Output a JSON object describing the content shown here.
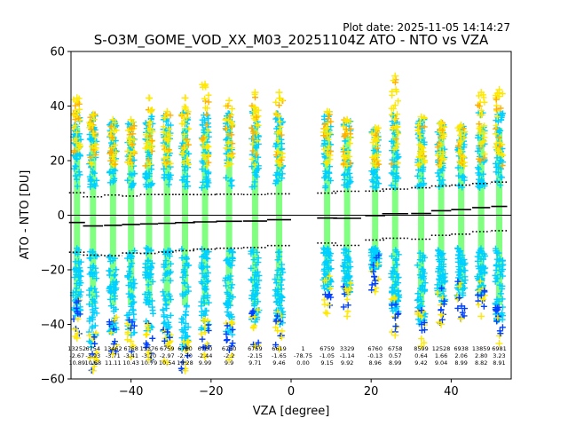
{
  "header": {
    "plot_date": "Plot date: 2025-11-05 14:14:27",
    "title": "S-O3M_GOME_VOD_XX_M03_20251104Z ATO - NTO vs VZA"
  },
  "chart_data": {
    "type": "scatter",
    "xlabel": "VZA [degree]",
    "ylabel": "ATO - NTO [DU]",
    "xlim": [
      -55,
      55
    ],
    "ylim": [
      -60,
      60
    ],
    "xticks": [
      -40,
      -20,
      0,
      20,
      40
    ],
    "yticks": [
      -60,
      -40,
      -20,
      0,
      20,
      40,
      60
    ],
    "colors": {
      "green": "#80ff80",
      "cyan": "#00d0ff",
      "blue": "#0040ff",
      "yellow": "#ffe800",
      "orange": "#ffb000",
      "line": "#000000"
    },
    "bins": [
      {
        "vza": -53.5,
        "count": "13252",
        "mean": "-2.67",
        "std": "10.89",
        "mean_v": -2.67,
        "std_v": 10.89,
        "top": 43,
        "bottom": -45
      },
      {
        "vza": -49.5,
        "count": "6754",
        "mean": "-3.93",
        "std": "10.68",
        "mean_v": -3.93,
        "std_v": 10.68,
        "top": 37,
        "bottom": -57
      },
      {
        "vza": -44.5,
        "count": "13462",
        "mean": "-3.71",
        "std": "11.11",
        "mean_v": -3.71,
        "std_v": 11.11,
        "top": 35,
        "bottom": -51
      },
      {
        "vza": -40.0,
        "count": "6758",
        "mean": "-3.41",
        "std": "10.43",
        "mean_v": -3.41,
        "std_v": 10.43,
        "top": 35,
        "bottom": -52
      },
      {
        "vza": -35.5,
        "count": "13376",
        "mean": "-3.20",
        "std": "10.79",
        "mean_v": -3.2,
        "std_v": 10.79,
        "top": 43,
        "bottom": -53
      },
      {
        "vza": -31.0,
        "count": "6759",
        "mean": "-2.97",
        "std": "10.54",
        "mean_v": -2.97,
        "std_v": 10.54,
        "top": 38,
        "bottom": -54
      },
      {
        "vza": -26.5,
        "count": "6760",
        "mean": "-2.70",
        "std": "10.28",
        "mean_v": -2.7,
        "std_v": 10.28,
        "top": 43,
        "bottom": -57
      },
      {
        "vza": -21.5,
        "count": "6760",
        "mean": "-2.44",
        "std": "9.99",
        "mean_v": -2.44,
        "std_v": 9.99,
        "top": 48,
        "bottom": -52
      },
      {
        "vza": -15.5,
        "count": "6760",
        "mean": "-2.2",
        "std": "9.9",
        "mean_v": -2.2,
        "std_v": 9.9,
        "top": 42,
        "bottom": -53
      },
      {
        "vza": -9.0,
        "count": "6759",
        "mean": "-2.15",
        "std": "9.71",
        "mean_v": -2.15,
        "std_v": 9.71,
        "top": 45,
        "bottom": -48
      },
      {
        "vza": -3.0,
        "count": "6619",
        "mean": "-1.65",
        "std": "9.46",
        "mean_v": -1.65,
        "std_v": 9.46,
        "top": 45,
        "bottom": -49
      },
      {
        "vza": 3.0,
        "count": "1",
        "mean": "-78.75",
        "std": "0.00",
        "mean_v": -78.75,
        "std_v": 0.0,
        "top": null,
        "bottom": null
      },
      {
        "vza": 9.0,
        "count": "6759",
        "mean": "-1.05",
        "std": "9.15",
        "mean_v": -1.05,
        "std_v": 9.15,
        "top": 38,
        "bottom": -36
      },
      {
        "vza": 14.0,
        "count": "3329",
        "mean": "-1.14",
        "std": "9.92",
        "mean_v": -1.14,
        "std_v": 9.92,
        "top": 35,
        "bottom": -37
      },
      {
        "vza": 21.0,
        "count": "6760",
        "mean": "-0.13",
        "std": "8.96",
        "mean_v": -0.13,
        "std_v": 8.96,
        "top": 32,
        "bottom": -28
      },
      {
        "vza": 26.0,
        "count": "6758",
        "mean": "0.57",
        "std": "8.99",
        "mean_v": 0.57,
        "std_v": 8.99,
        "top": 51,
        "bottom": -44
      },
      {
        "vza": 32.5,
        "count": "8599",
        "mean": "0.64",
        "std": "9.42",
        "mean_v": 0.64,
        "std_v": 9.42,
        "top": 36,
        "bottom": -48
      },
      {
        "vza": 37.5,
        "count": "12528",
        "mean": "1.66",
        "std": "9.04",
        "mean_v": 1.66,
        "std_v": 9.04,
        "top": 34,
        "bottom": -40
      },
      {
        "vza": 42.5,
        "count": "6938",
        "mean": "2.06",
        "std": "8.99",
        "mean_v": 2.06,
        "std_v": 8.99,
        "top": 33,
        "bottom": -38
      },
      {
        "vza": 47.5,
        "count": "13859",
        "mean": "2.80",
        "std": "8.82",
        "mean_v": 2.8,
        "std_v": 8.82,
        "top": 45,
        "bottom": -37
      },
      {
        "vza": 52.0,
        "count": "6981",
        "mean": "3.23",
        "std": "8.91",
        "mean_v": 3.23,
        "std_v": 8.91,
        "top": 46,
        "bottom": -47
      }
    ]
  }
}
